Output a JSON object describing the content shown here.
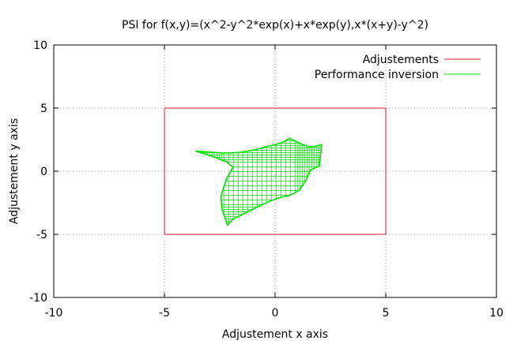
{
  "chart_data": {
    "type": "line",
    "title": "PSI for f(x,y)=(x^2-y^2*exp(x)+x*exp(y),x*(x+y)-y^2)",
    "xlabel": "Adjustement x axis",
    "ylabel": "Adjustement y axis",
    "xlim": [
      -10,
      10
    ],
    "ylim": [
      -10,
      10
    ],
    "xticks": [
      "-10",
      "-5",
      "0",
      "5",
      "10"
    ],
    "yticks": [
      "-10",
      "-5",
      "0",
      "5",
      "10"
    ],
    "grid": true,
    "legend_placement": "top-right",
    "series": [
      {
        "name": "Adjustements",
        "color": "#e41a1c",
        "kind": "rectangle",
        "points": [
          [
            -5,
            -5
          ],
          [
            5,
            -5
          ],
          [
            5,
            5
          ],
          [
            -5,
            5
          ],
          [
            -5,
            -5
          ]
        ]
      },
      {
        "name": "Performance inversion",
        "color": "#00e000",
        "kind": "mesh-region",
        "boundary": [
          [
            -3.6,
            1.6
          ],
          [
            -3.2,
            1.55
          ],
          [
            -2.8,
            1.5
          ],
          [
            -2.4,
            1.45
          ],
          [
            -2.0,
            1.45
          ],
          [
            -1.6,
            1.5
          ],
          [
            -1.2,
            1.6
          ],
          [
            -0.8,
            1.75
          ],
          [
            -0.4,
            1.95
          ],
          [
            0.0,
            2.1
          ],
          [
            0.35,
            2.3
          ],
          [
            0.65,
            2.6
          ],
          [
            0.9,
            2.4
          ],
          [
            1.2,
            2.15
          ],
          [
            1.5,
            1.95
          ],
          [
            1.75,
            1.95
          ],
          [
            2.1,
            2.1
          ],
          [
            2.0,
            0.4
          ],
          [
            1.6,
            0.1
          ],
          [
            1.4,
            -0.7
          ],
          [
            1.1,
            -1.5
          ],
          [
            0.7,
            -1.9
          ],
          [
            0.2,
            -2.1
          ],
          [
            -0.2,
            -2.35
          ],
          [
            -0.7,
            -2.75
          ],
          [
            -1.1,
            -3.1
          ],
          [
            -1.5,
            -3.45
          ],
          [
            -1.9,
            -3.8
          ],
          [
            -2.15,
            -4.25
          ],
          [
            -2.4,
            -3.0
          ],
          [
            -2.45,
            -2.0
          ],
          [
            -2.2,
            -0.6
          ],
          [
            -1.9,
            0.3
          ],
          [
            -2.2,
            0.75
          ],
          [
            -2.8,
            1.15
          ],
          [
            -3.6,
            1.6
          ]
        ]
      }
    ]
  }
}
